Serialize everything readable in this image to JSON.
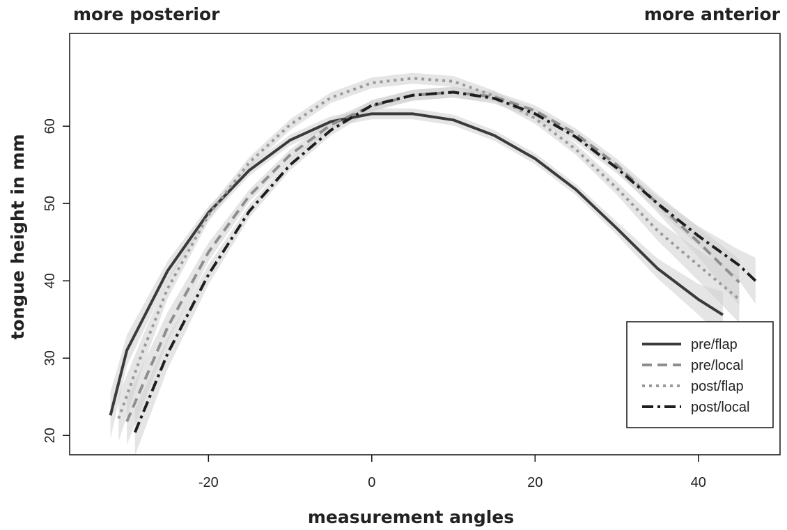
{
  "annotations": {
    "left": "more posterior",
    "right": "more anterior"
  },
  "chart_data": {
    "type": "line",
    "xlabel": "measurement angles",
    "ylabel": "tongue height in mm",
    "xlim": [
      -37,
      50
    ],
    "ylim": [
      17.5,
      72
    ],
    "xticks": [
      -20,
      0,
      20,
      40
    ],
    "yticks": [
      20,
      30,
      40,
      50,
      60
    ],
    "grid": false,
    "legend_position": "bottom-right",
    "confidence_bands": true,
    "series": [
      {
        "name": "pre/flap",
        "style": "solid",
        "color": "#3a3a3a",
        "points": [
          [
            -32,
            22.6
          ],
          [
            -30,
            31.0
          ],
          [
            -25,
            41.3
          ],
          [
            -20,
            48.8
          ],
          [
            -15,
            54.3
          ],
          [
            -10,
            58.2
          ],
          [
            -5,
            60.6
          ],
          [
            0,
            61.6
          ],
          [
            5,
            61.6
          ],
          [
            10,
            60.8
          ],
          [
            15,
            58.8
          ],
          [
            20,
            55.8
          ],
          [
            25,
            51.8
          ],
          [
            30,
            46.8
          ],
          [
            35,
            41.6
          ],
          [
            40,
            37.6
          ],
          [
            43,
            35.6
          ]
        ]
      },
      {
        "name": "pre/local",
        "style": "dashed",
        "color": "#8e8e8e",
        "points": [
          [
            -30,
            21.8
          ],
          [
            -25,
            34.0
          ],
          [
            -20,
            43.7
          ],
          [
            -15,
            51.0
          ],
          [
            -10,
            56.3
          ],
          [
            -5,
            60.2
          ],
          [
            0,
            62.6
          ],
          [
            5,
            64.0
          ],
          [
            10,
            64.4
          ],
          [
            15,
            63.8
          ],
          [
            20,
            62.0
          ],
          [
            25,
            59.0
          ],
          [
            30,
            55.0
          ],
          [
            35,
            50.0
          ],
          [
            40,
            45.0
          ],
          [
            45,
            39.8
          ]
        ]
      },
      {
        "name": "post/flap",
        "style": "dotted",
        "color": "#9a9a9a",
        "points": [
          [
            -31,
            22.2
          ],
          [
            -28,
            31.0
          ],
          [
            -25,
            39.0
          ],
          [
            -20,
            48.5
          ],
          [
            -15,
            55.3
          ],
          [
            -10,
            60.2
          ],
          [
            -5,
            63.7
          ],
          [
            0,
            65.6
          ],
          [
            5,
            66.2
          ],
          [
            10,
            65.8
          ],
          [
            15,
            63.9
          ],
          [
            20,
            61.0
          ],
          [
            25,
            57.0
          ],
          [
            30,
            52.0
          ],
          [
            35,
            46.5
          ],
          [
            40,
            42.0
          ],
          [
            45,
            37.6
          ]
        ]
      },
      {
        "name": "post/local",
        "style": "dotdash",
        "color": "#1e1e1e",
        "points": [
          [
            -29,
            20.4
          ],
          [
            -25,
            30.6
          ],
          [
            -20,
            40.8
          ],
          [
            -15,
            49.0
          ],
          [
            -10,
            55.0
          ],
          [
            -5,
            59.5
          ],
          [
            0,
            62.7
          ],
          [
            5,
            64.0
          ],
          [
            10,
            64.4
          ],
          [
            15,
            63.6
          ],
          [
            20,
            61.6
          ],
          [
            25,
            58.6
          ],
          [
            30,
            54.6
          ],
          [
            35,
            50.0
          ],
          [
            40,
            45.8
          ],
          [
            45,
            42.0
          ],
          [
            47,
            40.0
          ]
        ]
      }
    ]
  }
}
